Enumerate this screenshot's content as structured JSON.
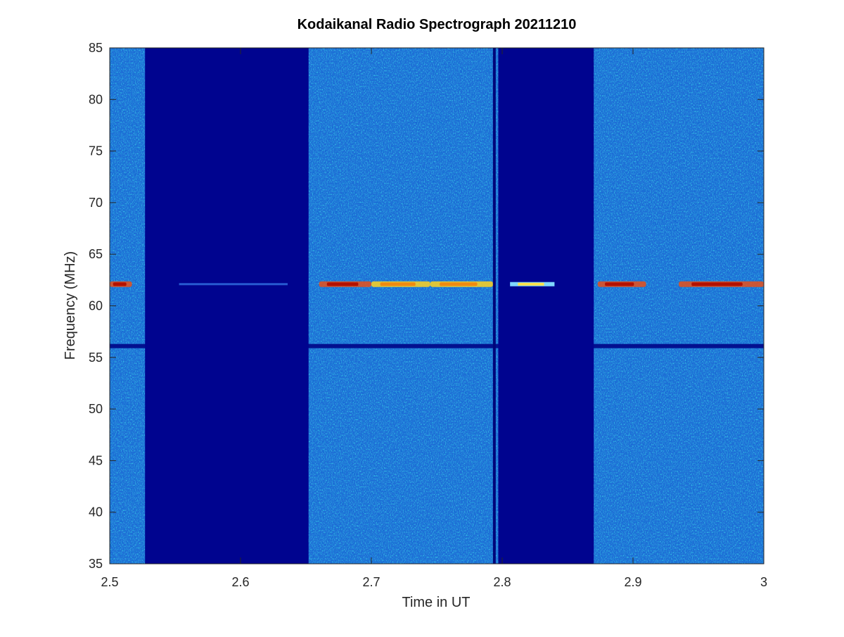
{
  "chart_data": {
    "type": "heatmap",
    "title": "Kodaikanal Radio Spectrograph  20211210",
    "xlabel": "Time in UT",
    "ylabel": "Frequency (MHz)",
    "xlim": [
      2.5,
      3.0
    ],
    "ylim": [
      35,
      85
    ],
    "xticks": [
      2.5,
      2.6,
      2.7,
      2.8,
      2.9,
      3.0
    ],
    "xtick_labels": [
      "2.5",
      "2.6",
      "2.7",
      "2.8",
      "2.9",
      "3"
    ],
    "yticks": [
      35,
      40,
      45,
      50,
      55,
      60,
      65,
      70,
      75,
      80,
      85
    ],
    "ytick_labels": [
      "35",
      "40",
      "45",
      "50",
      "55",
      "60",
      "65",
      "70",
      "75",
      "80",
      "85"
    ],
    "grid": false,
    "colormap": "jet",
    "background_color": "#1f6fd6",
    "no_data_intervals_ut": [
      [
        2.527,
        2.652
      ],
      [
        2.797,
        2.87
      ]
    ],
    "narrow_dark_gaps_ut": [
      2.794
    ],
    "persistent_dark_band_mhz": 56.1,
    "emission_line_mhz": 62.1,
    "emission_segments": [
      {
        "t_start": 2.5,
        "t_end": 2.517,
        "intensity": "high"
      },
      {
        "t_start": 2.553,
        "t_end": 2.636,
        "intensity": "low"
      },
      {
        "t_start": 2.66,
        "t_end": 2.7,
        "intensity": "high"
      },
      {
        "t_start": 2.7,
        "t_end": 2.745,
        "intensity": "medium"
      },
      {
        "t_start": 2.745,
        "t_end": 2.793,
        "intensity": "medium"
      },
      {
        "t_start": 2.81,
        "t_end": 2.838,
        "intensity": "medium"
      },
      {
        "t_start": 2.873,
        "t_end": 2.91,
        "intensity": "high"
      },
      {
        "t_start": 2.935,
        "t_end": 3.0,
        "intensity": "high"
      }
    ]
  }
}
